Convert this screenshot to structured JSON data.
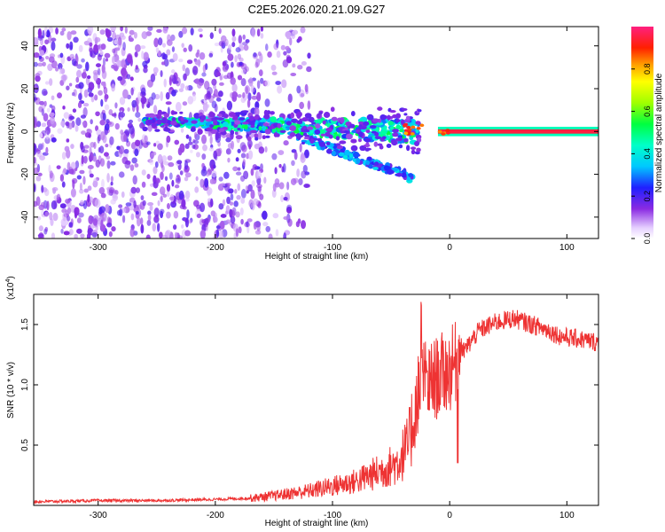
{
  "title": "C2E5.2026.020.21.09.G27",
  "chart_data": [
    {
      "type": "heatmap",
      "name": "spectrogram",
      "xlabel": "Height of straight line (km)",
      "ylabel": "Frequency (Hz)",
      "xlim": [
        -355,
        127
      ],
      "ylim": [
        -50,
        49
      ],
      "xticks": [
        -300,
        -200,
        -100,
        0,
        100
      ],
      "yticks": [
        -40,
        -20,
        0,
        20,
        40
      ],
      "colorbar": {
        "label": "Normalized spectral amplitude",
        "range": [
          0,
          1
        ],
        "ticks": [
          "0.0",
          "0.2",
          "0.4",
          "0.6",
          "0.8"
        ],
        "tick_values": [
          0.0,
          0.2,
          0.4,
          0.6,
          0.8
        ]
      },
      "features": {
        "tone_line": {
          "x_start": -10,
          "x_end": 127,
          "frequency_hz": 0,
          "amplitude": 0.95
        },
        "main_band": {
          "x_start": -260,
          "x_end": -25,
          "frequency_start_hz": 5,
          "frequency_end_hz": 0,
          "amplitude_range": [
            0.25,
            0.55
          ]
        },
        "low_branch": {
          "x_start": -130,
          "x_end": -30,
          "frequency_start_hz": -2,
          "frequency_end_hz": -22
        },
        "noise_region": {
          "x_start": -355,
          "x_end": -160,
          "amplitude_range": [
            0.05,
            0.2
          ]
        }
      }
    },
    {
      "type": "line",
      "name": "snr",
      "xlabel": "Height of straight line (km)",
      "ylabel": "SNR (10 * v/v)",
      "multiplier": "(x10",
      "multiplier_exp": "4",
      "xlim": [
        -355,
        127
      ],
      "ylim": [
        0,
        1.75
      ],
      "xticks": [
        -300,
        -200,
        -100,
        0,
        100
      ],
      "yticks": [
        0.5,
        1.0,
        1.5
      ],
      "ytick_labels": [
        "0.5",
        "1.0",
        "1.5"
      ],
      "color": "#ee3333",
      "series": [
        {
          "name": "SNR",
          "x": [
            -355,
            -300,
            -250,
            -200,
            -170,
            -150,
            -120,
            -100,
            -80,
            -60,
            -45,
            -35,
            -28,
            -22,
            -18,
            -12,
            -5,
            0,
            10,
            25,
            40,
            55,
            70,
            85,
            95,
            110,
            127
          ],
          "values": [
            0.03,
            0.04,
            0.04,
            0.05,
            0.06,
            0.08,
            0.12,
            0.16,
            0.2,
            0.28,
            0.35,
            0.5,
            0.9,
            1.05,
            1.0,
            1.05,
            1.1,
            1.12,
            1.25,
            1.45,
            1.52,
            1.55,
            1.5,
            1.45,
            1.4,
            1.38,
            1.35
          ]
        }
      ]
    }
  ]
}
